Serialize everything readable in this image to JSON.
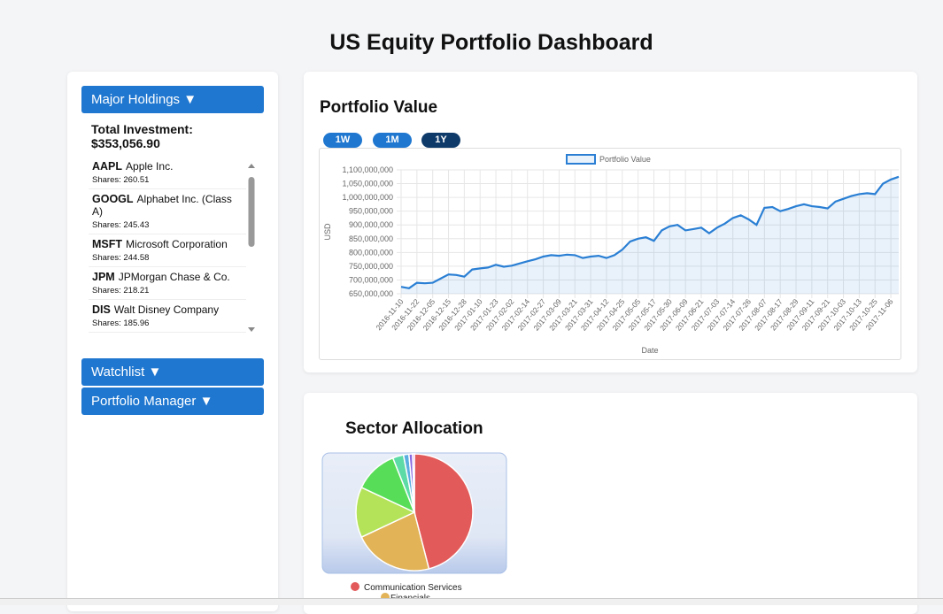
{
  "header": {
    "title": "US Equity Portfolio Dashboard"
  },
  "sidebar": {
    "sections": [
      "Major Holdings ▼",
      "Watchlist ▼",
      "Portfolio Manager ▼"
    ],
    "total_label": "Total Investment:",
    "total_value": "$353,056.90",
    "shares_label": "Shares:",
    "holdings": [
      {
        "ticker": "AAPL",
        "name": "Apple Inc.",
        "shares": 260.51
      },
      {
        "ticker": "GOOGL",
        "name": "Alphabet Inc. (Class A)",
        "shares": 245.43
      },
      {
        "ticker": "MSFT",
        "name": "Microsoft Corporation",
        "shares": 244.58
      },
      {
        "ticker": "JPM",
        "name": "JPMorgan Chase & Co.",
        "shares": 218.21
      },
      {
        "ticker": "DIS",
        "name": "Walt Disney Company",
        "shares": 185.96
      }
    ]
  },
  "ranges": {
    "options": [
      "1W",
      "1M",
      "1Y"
    ],
    "active": 2
  },
  "chart_data": [
    {
      "type": "line",
      "title": "Portfolio Value",
      "xlabel": "Date",
      "ylabel": "USD",
      "legend": "top",
      "grid": true,
      "area": true,
      "categories": [
        "2016-11-10",
        null,
        "2016-11-22",
        null,
        "2016-12-05",
        null,
        "2016-12-15",
        null,
        "2016-12-28",
        null,
        "2017-01-10",
        null,
        "2017-01-23",
        null,
        "2017-02-02",
        null,
        "2017-02-14",
        null,
        "2017-02-27",
        null,
        "2017-03-09",
        null,
        "2017-03-21",
        null,
        "2017-03-31",
        null,
        "2017-04-12",
        null,
        "2017-04-25",
        null,
        "2017-05-05",
        null,
        "2017-05-17",
        null,
        "2017-05-30",
        null,
        "2017-06-09",
        null,
        "2017-06-21",
        null,
        "2017-07-03",
        null,
        "2017-07-14",
        null,
        "2017-07-26",
        null,
        "2017-08-07",
        null,
        "2017-08-17",
        null,
        "2017-08-29",
        null,
        "2017-09-11",
        null,
        "2017-09-21",
        null,
        "2017-10-03",
        null,
        "2017-10-13",
        null,
        "2017-10-25",
        null,
        "2017-11-06",
        null
      ],
      "series": [
        {
          "name": "Portfolio Value",
          "color": "#2a7fd4",
          "values": [
            675000000,
            670000000,
            690000000,
            688000000,
            690000000,
            705000000,
            720000000,
            718000000,
            712000000,
            738000000,
            742000000,
            745000000,
            755000000,
            748000000,
            752000000,
            760000000,
            768000000,
            775000000,
            785000000,
            790000000,
            788000000,
            792000000,
            790000000,
            780000000,
            785000000,
            788000000,
            780000000,
            790000000,
            810000000,
            840000000,
            850000000,
            855000000,
            842000000,
            880000000,
            895000000,
            900000000,
            880000000,
            885000000,
            890000000,
            870000000,
            890000000,
            905000000,
            925000000,
            935000000,
            920000000,
            900000000,
            962000000,
            965000000,
            950000000,
            958000000,
            968000000,
            975000000,
            968000000,
            965000000,
            960000000,
            985000000,
            995000000,
            1005000000,
            1012000000,
            1015000000,
            1012000000,
            1050000000,
            1065000000,
            1075000000
          ]
        }
      ],
      "ylim": [
        650000000,
        1100000000
      ],
      "yticks": [
        {
          "value": 650000000,
          "label": "650,000,000"
        },
        {
          "value": 700000000,
          "label": "700,000,000"
        },
        {
          "value": 750000000,
          "label": "750,000,000"
        },
        {
          "value": 800000000,
          "label": "800,000,000"
        },
        {
          "value": 850000000,
          "label": "850,000,000"
        },
        {
          "value": 900000000,
          "label": "900,000,000"
        },
        {
          "value": 950000000,
          "label": "950,000,000"
        },
        {
          "value": 1000000000,
          "label": "1,000,000,000"
        },
        {
          "value": 1050000000,
          "label": "1,050,000,000"
        },
        {
          "value": 1100000000,
          "label": "1,100,000,000"
        }
      ]
    },
    {
      "type": "pie",
      "title": "Sector Allocation",
      "legend": "bottom",
      "categories": [
        "Communication Services",
        "Financials",
        null,
        null,
        null,
        null,
        null,
        null
      ],
      "values": [
        46,
        22,
        14,
        12,
        3,
        1.5,
        1,
        0.5
      ],
      "colors": [
        "#e35a5a",
        "#e2b357",
        "#b4e35a",
        "#58dd58",
        "#5cdba6",
        "#5aaee0",
        "#8a6ae0",
        "#dd6ad0"
      ]
    }
  ]
}
